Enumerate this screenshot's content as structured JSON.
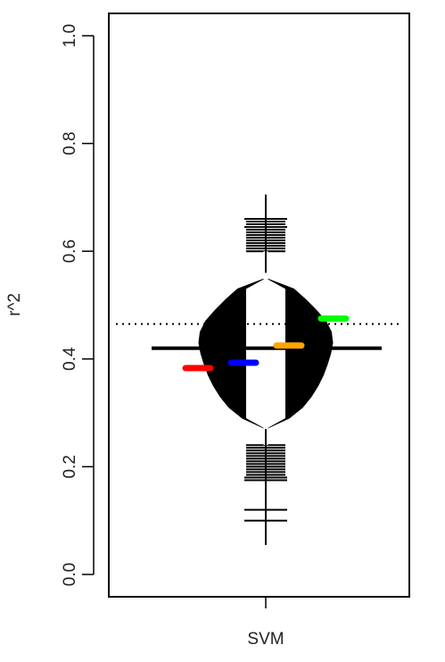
{
  "chart_data": {
    "type": "beanplot",
    "ylabel": "r^2",
    "xlabel": "",
    "categories": [
      "SVM"
    ],
    "ylim": [
      0.0,
      1.0
    ],
    "yticks": [
      0.0,
      0.2,
      0.4,
      0.6,
      0.8,
      1.0
    ],
    "ytick_labels": [
      "0.0",
      "0.2",
      "0.4",
      "0.6",
      "0.8",
      "1.0"
    ],
    "reference_line": {
      "y": 0.465,
      "style": "dotted",
      "color": "#000000"
    },
    "bean": {
      "category": "SVM",
      "median": 0.42,
      "min": 0.055,
      "max": 0.705,
      "density": [
        [
          0.27,
          0.0
        ],
        [
          0.29,
          0.35
        ],
        [
          0.31,
          0.55
        ],
        [
          0.33,
          0.68
        ],
        [
          0.35,
          0.78
        ],
        [
          0.37,
          0.86
        ],
        [
          0.39,
          0.92
        ],
        [
          0.41,
          0.97
        ],
        [
          0.43,
          1.0
        ],
        [
          0.45,
          0.98
        ],
        [
          0.47,
          0.9
        ],
        [
          0.49,
          0.76
        ],
        [
          0.51,
          0.6
        ],
        [
          0.53,
          0.42
        ],
        [
          0.55,
          0.0
        ]
      ],
      "inner_band": [
        0.3,
        0.54
      ],
      "rug_lines": [
        0.1,
        0.12,
        0.175,
        0.18,
        0.185,
        0.19,
        0.195,
        0.2,
        0.205,
        0.21,
        0.215,
        0.22,
        0.225,
        0.23,
        0.235,
        0.24,
        0.6,
        0.605,
        0.61,
        0.615,
        0.62,
        0.625,
        0.63,
        0.635,
        0.64,
        0.645,
        0.65,
        0.655,
        0.66
      ],
      "rug_wide": [
        0.1,
        0.12,
        0.175,
        0.18,
        0.645,
        0.66
      ]
    },
    "series": [
      {
        "color": "#ff0000",
        "value": 0.383
      },
      {
        "color": "#0000ff",
        "value": 0.393
      },
      {
        "color": "#ffa500",
        "value": 0.425
      },
      {
        "color": "#00ff00",
        "value": 0.475
      }
    ]
  }
}
